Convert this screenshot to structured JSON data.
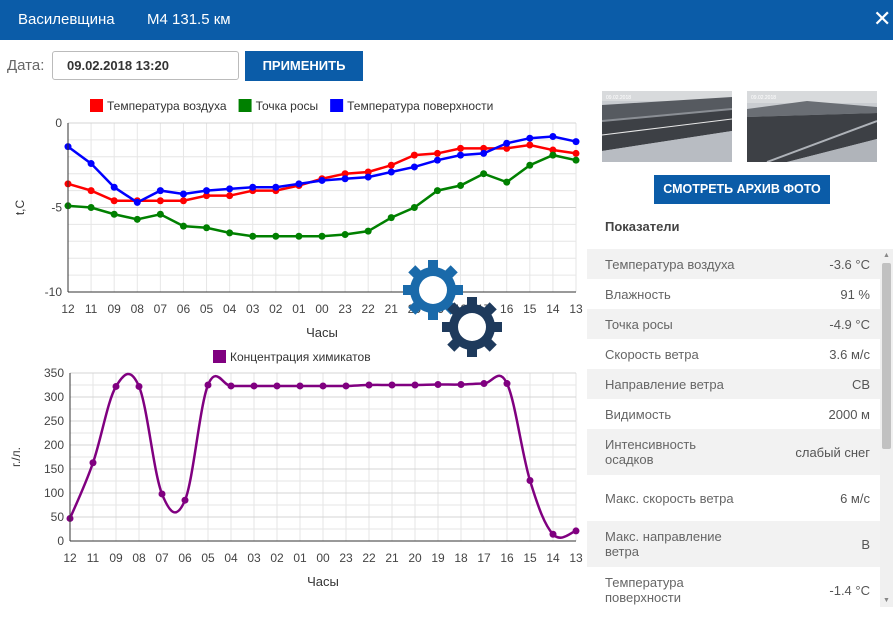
{
  "header": {
    "station": "Василевщина",
    "road": "М4 131.5 км",
    "close_symbol": "✕"
  },
  "toolbar": {
    "date_label": "Дата:",
    "date_value": "09.02.2018 13:20",
    "apply_label": "ПРИМЕНИТЬ"
  },
  "photos": {
    "archive_label": "СМОТРЕТЬ АРХИВ ФОТО"
  },
  "indicators": {
    "title": "Показатели",
    "rows": [
      {
        "label": "Температура воздуха",
        "value": "-3.6 °C"
      },
      {
        "label": "Влажность",
        "value": "91 %"
      },
      {
        "label": "Точка росы",
        "value": "-4.9 °C"
      },
      {
        "label": "Скорость ветра",
        "value": "3.6 м/с"
      },
      {
        "label": "Направление ветра",
        "value": "СВ"
      },
      {
        "label": "Видимость",
        "value": "2000 м"
      },
      {
        "label": "Интенсивность осадков",
        "value": "слабый снег"
      },
      {
        "label": "Макс. скорость ветра",
        "value": "6 м/с"
      },
      {
        "label": "Макс. направление ветра",
        "value": "В"
      },
      {
        "label": "Температура поверхности",
        "value": "-1.4 °C"
      }
    ]
  },
  "chart_data": [
    {
      "type": "line",
      "categories": [
        "12",
        "11",
        "09",
        "08",
        "07",
        "06",
        "05",
        "04",
        "03",
        "02",
        "01",
        "00",
        "23",
        "22",
        "21",
        "20",
        "19",
        "18",
        "17",
        "16",
        "15",
        "14",
        "13"
      ],
      "ylabel": "t,C",
      "xlabel": "Часы",
      "ylim": [
        -10,
        0
      ],
      "yticks": [
        0,
        -5,
        -10
      ],
      "legend_position": "top",
      "series": [
        {
          "name": "Температура воздуха",
          "color": "#ff0000",
          "values": [
            -3.6,
            -4.0,
            -4.6,
            -4.6,
            -4.6,
            -4.6,
            -4.3,
            -4.3,
            -4.0,
            -4.0,
            -3.7,
            -3.3,
            -3.0,
            -2.9,
            -2.5,
            -1.9,
            -1.8,
            -1.5,
            -1.5,
            -1.5,
            -1.3,
            -1.6,
            -1.8
          ]
        },
        {
          "name": "Точка росы",
          "color": "#008000",
          "values": [
            -4.9,
            -5.0,
            -5.4,
            -5.7,
            -5.4,
            -6.1,
            -6.2,
            -6.5,
            -6.7,
            -6.7,
            -6.7,
            -6.7,
            -6.6,
            -6.4,
            -5.6,
            -5.0,
            -4.0,
            -3.7,
            -3.0,
            -3.5,
            -2.5,
            -1.9,
            -2.2
          ]
        },
        {
          "name": "Температура поверхности",
          "color": "#0000ff",
          "values": [
            -1.4,
            -2.4,
            -3.8,
            -4.7,
            -4.0,
            -4.2,
            -4.0,
            -3.9,
            -3.8,
            -3.8,
            -3.6,
            -3.4,
            -3.3,
            -3.2,
            -2.9,
            -2.6,
            -2.2,
            -1.9,
            -1.8,
            -1.2,
            -0.9,
            -0.8,
            -1.1
          ]
        }
      ]
    },
    {
      "type": "line",
      "categories": [
        "12",
        "11",
        "09",
        "08",
        "07",
        "06",
        "05",
        "04",
        "03",
        "02",
        "01",
        "00",
        "23",
        "22",
        "21",
        "20",
        "19",
        "18",
        "17",
        "16",
        "15",
        "14",
        "13"
      ],
      "ylabel": "г./л.",
      "xlabel": "Часы",
      "ylim": [
        0,
        350
      ],
      "yticks": [
        0,
        50,
        100,
        150,
        200,
        250,
        300,
        350
      ],
      "legend_position": "top",
      "series": [
        {
          "name": "Концентрация химикатов",
          "color": "#800080",
          "values": [
            47,
            163,
            322,
            322,
            98,
            85,
            325,
            323,
            323,
            323,
            323,
            323,
            323,
            325,
            325,
            325,
            326,
            326,
            328,
            328,
            126,
            14,
            21
          ]
        }
      ]
    }
  ]
}
